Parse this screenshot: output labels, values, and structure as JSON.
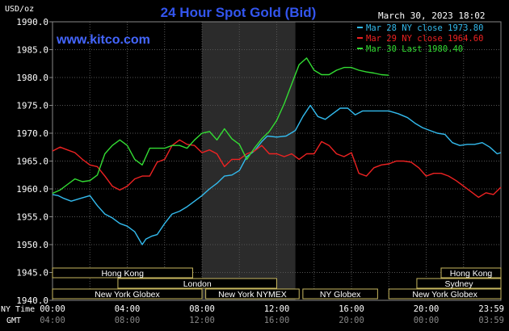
{
  "chart_data": {
    "type": "line",
    "title": "24 Hour Spot Gold (Bid)",
    "units": "USD/oz",
    "date": "March 30, 2023 18:02",
    "watermark": "www.kitco.com",
    "ylim": [
      1940,
      1990
    ],
    "y_ticks": [
      "1990.0",
      "1985.0",
      "1980.0",
      "1975.0",
      "1970.0",
      "1965.0",
      "1960.0",
      "1955.0",
      "1950.0",
      "1945.0",
      "1940.0"
    ],
    "x_ny_label": "NY Time",
    "x_gmt_label": "GMT",
    "x_ny_ticks": [
      "00:00",
      "04:00",
      "08:00",
      "12:00",
      "16:00",
      "20:00",
      "23:59"
    ],
    "x_gmt_ticks": [
      "04:00",
      "08:00",
      "12:00",
      "16:00",
      "20:00",
      "00:00",
      "03:59"
    ],
    "legend_position": "top-right",
    "shaded_hours": [
      8,
      13
    ],
    "series": [
      {
        "name": "Mar 28 NY close 1973.80",
        "color": "#33bbee",
        "x": [
          0,
          0.3,
          0.6,
          1,
          1.5,
          2,
          2.4,
          2.8,
          3.2,
          3.6,
          4,
          4.4,
          4.8,
          5,
          5.3,
          5.6,
          6,
          6.4,
          6.8,
          7.2,
          7.6,
          8,
          8.4,
          8.8,
          9.2,
          9.6,
          10,
          10.4,
          10.8,
          11.2,
          11.5,
          12,
          12.5,
          13,
          13.4,
          13.8,
          14.2,
          14.6,
          15,
          15.4,
          15.8,
          16.2,
          16.6,
          17,
          17.5,
          18,
          18.5,
          19,
          19.4,
          19.8,
          20.2,
          20.6,
          21,
          21.4,
          21.8,
          22.2,
          22.6,
          23,
          23.4,
          23.8,
          24
        ],
        "y": [
          1959,
          1958.8,
          1958.3,
          1957.8,
          1958.3,
          1958.8,
          1957,
          1955.5,
          1954.8,
          1953.8,
          1953.3,
          1952.3,
          1950,
          1951,
          1951.5,
          1951.8,
          1953.8,
          1955.5,
          1956,
          1956.8,
          1957.8,
          1958.8,
          1960,
          1961,
          1962.3,
          1962.5,
          1963.3,
          1965.8,
          1966.8,
          1968.5,
          1969.5,
          1969.3,
          1969.5,
          1970.5,
          1973,
          1975,
          1973,
          1972.5,
          1973.5,
          1974.5,
          1974.5,
          1973.3,
          1974,
          1974,
          1974,
          1974,
          1973.5,
          1972.8,
          1971.8,
          1971,
          1970.5,
          1970,
          1969.8,
          1968.3,
          1967.8,
          1968,
          1968,
          1968.3,
          1967.5,
          1966.3,
          1966.5
        ]
      },
      {
        "name": "Mar 29 NY close 1964.60",
        "color": "#ee2222",
        "x": [
          0,
          0.4,
          0.8,
          1.2,
          1.6,
          2,
          2.4,
          2.8,
          3.2,
          3.6,
          4,
          4.4,
          4.8,
          5.2,
          5.6,
          6,
          6.4,
          6.8,
          7.2,
          7.6,
          8,
          8.4,
          8.8,
          9.2,
          9.6,
          10,
          10.4,
          10.8,
          11.2,
          11.6,
          12,
          12.4,
          12.8,
          13.2,
          13.6,
          14,
          14.4,
          14.8,
          15.2,
          15.6,
          16,
          16.4,
          16.8,
          17.2,
          17.6,
          18,
          18.4,
          18.8,
          19.2,
          19.6,
          20,
          20.4,
          20.8,
          21.2,
          21.6,
          22,
          22.4,
          22.8,
          23.2,
          23.6,
          24
        ],
        "y": [
          1966.8,
          1967.5,
          1967,
          1966.5,
          1965.3,
          1964.3,
          1964,
          1962.3,
          1960.5,
          1959.8,
          1960.5,
          1961.8,
          1962.3,
          1962.3,
          1964.8,
          1965.3,
          1967.8,
          1968.8,
          1968,
          1967.8,
          1966.5,
          1967,
          1966.3,
          1964,
          1965.3,
          1965.3,
          1966.3,
          1966.8,
          1967.8,
          1966.3,
          1966.3,
          1965.8,
          1966.3,
          1965.3,
          1966.3,
          1966.3,
          1968.5,
          1967.8,
          1966.3,
          1965.8,
          1966.5,
          1962.8,
          1962.3,
          1963.8,
          1964.3,
          1964.5,
          1965,
          1965,
          1964.8,
          1963.8,
          1962.3,
          1962.8,
          1962.8,
          1962.3,
          1961.5,
          1960.5,
          1959.5,
          1958.5,
          1959.3,
          1959,
          1960.3
        ]
      },
      {
        "name": "Mar 30 Last 1980.40",
        "color": "#33dd33",
        "x": [
          0,
          0.4,
          0.8,
          1.2,
          1.6,
          2,
          2.4,
          2.8,
          3.2,
          3.6,
          4,
          4.4,
          4.8,
          5.2,
          5.6,
          6,
          6.4,
          6.8,
          7.2,
          7.6,
          8,
          8.4,
          8.8,
          9.2,
          9.6,
          10,
          10.4,
          10.8,
          11.2,
          11.6,
          12,
          12.4,
          12.8,
          13.2,
          13.6,
          14,
          14.4,
          14.8,
          15.2,
          15.6,
          16,
          16.4,
          16.8,
          17.2,
          17.6,
          18
        ],
        "y": [
          1959.2,
          1959.8,
          1960.8,
          1961.8,
          1961.3,
          1961.5,
          1962.5,
          1966.3,
          1967.8,
          1968.8,
          1967.8,
          1965.3,
          1964.3,
          1967.3,
          1967.3,
          1967.3,
          1967.8,
          1967.8,
          1967.3,
          1968.8,
          1970,
          1970.3,
          1968.8,
          1970.8,
          1969,
          1968,
          1965.3,
          1967.3,
          1969,
          1970.3,
          1972.3,
          1975.3,
          1978.8,
          1982.3,
          1983.5,
          1981.3,
          1980.5,
          1980.5,
          1981.3,
          1981.8,
          1981.8,
          1981.3,
          1981,
          1980.8,
          1980.5,
          1980.4
        ]
      }
    ],
    "markets": [
      {
        "name": "Hong Kong",
        "start": 0,
        "end": 7.5,
        "row": 0
      },
      {
        "name": "Hong Kong",
        "start": 20.8,
        "end": 24,
        "row": 0
      },
      {
        "name": "London",
        "start": 3.5,
        "end": 12,
        "row": 1
      },
      {
        "name": "Sydney",
        "start": 19.5,
        "end": 24,
        "row": 1
      },
      {
        "name": "New York Globex",
        "start": 0,
        "end": 8,
        "row": 2
      },
      {
        "name": "New York NYMEX",
        "start": 8.2,
        "end": 13.2,
        "row": 2
      },
      {
        "name": "NY Globex",
        "start": 13.4,
        "end": 17.4,
        "row": 2
      },
      {
        "name": "New York Globex",
        "start": 18,
        "end": 24,
        "row": 2
      }
    ]
  }
}
